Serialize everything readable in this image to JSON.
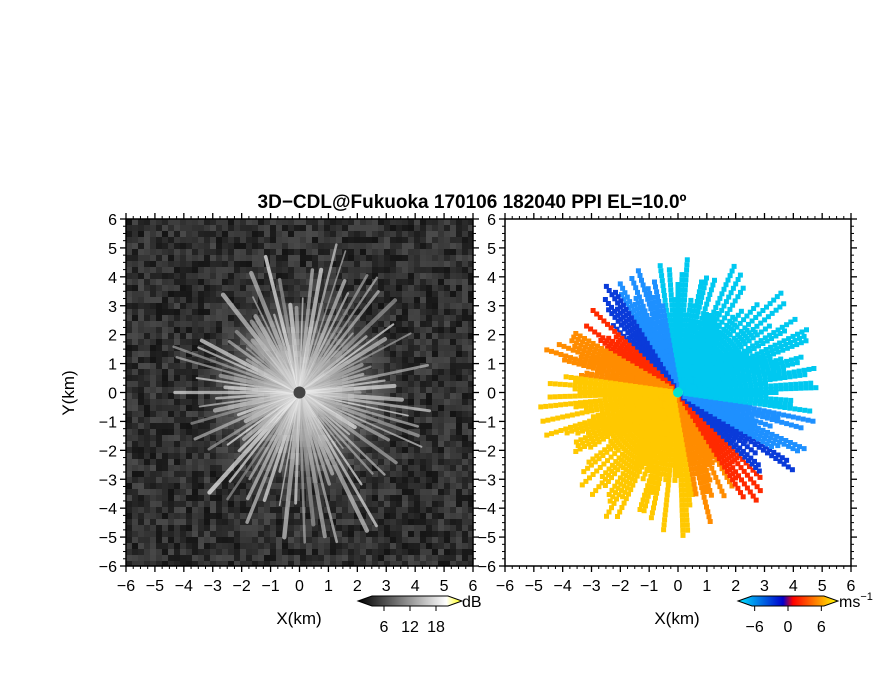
{
  "title": "3D−CDL@Fukuoka 170106 182040 PPI EL=10.0º",
  "chart_data": [
    {
      "type": "heatmap",
      "panel": "left",
      "description_quantity": "reflectivity",
      "xlabel": "X(km)",
      "ylabel": "Y(km)",
      "xlim": [
        -6,
        6
      ],
      "ylim": [
        -6,
        6
      ],
      "x_ticks": [
        "−6",
        "−5",
        "−4",
        "−3",
        "−2",
        "−1",
        "0",
        "1",
        "2",
        "3",
        "4",
        "5",
        "6"
      ],
      "y_ticks": [
        "−6",
        "−5",
        "−4",
        "−3",
        "−2",
        "−1",
        "0",
        "1",
        "2",
        "3",
        "4",
        "5",
        "6"
      ],
      "colorbar": {
        "unit": "dB",
        "range": [
          0,
          24
        ],
        "tick_values": [
          6,
          12,
          18
        ],
        "tick_labels": [
          "6",
          "12",
          "18"
        ],
        "colors": [
          "#000000",
          "#ffffff",
          "#ffff00"
        ]
      }
    },
    {
      "type": "heatmap",
      "panel": "right",
      "description_quantity": "doppler velocity",
      "xlabel": "X(km)",
      "xlim": [
        -6,
        6
      ],
      "ylim": [
        -6,
        6
      ],
      "x_ticks": [
        "−6",
        "−5",
        "−4",
        "−3",
        "−2",
        "−1",
        "0",
        "1",
        "2",
        "3",
        "4",
        "5",
        "6"
      ],
      "y_ticks": [
        "−6",
        "−5",
        "−4",
        "−3",
        "−2",
        "−1",
        "0",
        "1",
        "2",
        "3",
        "4",
        "5",
        "6"
      ],
      "colorbar": {
        "unit": "ms",
        "unit_exp": "−1",
        "range": [
          -9,
          9
        ],
        "tick_values": [
          -6,
          0,
          6
        ],
        "tick_labels": [
          "−6",
          "0",
          "6"
        ],
        "colors": [
          "#00e5ff",
          "#0000cc",
          "#ff0000",
          "#ffff00"
        ]
      }
    }
  ]
}
